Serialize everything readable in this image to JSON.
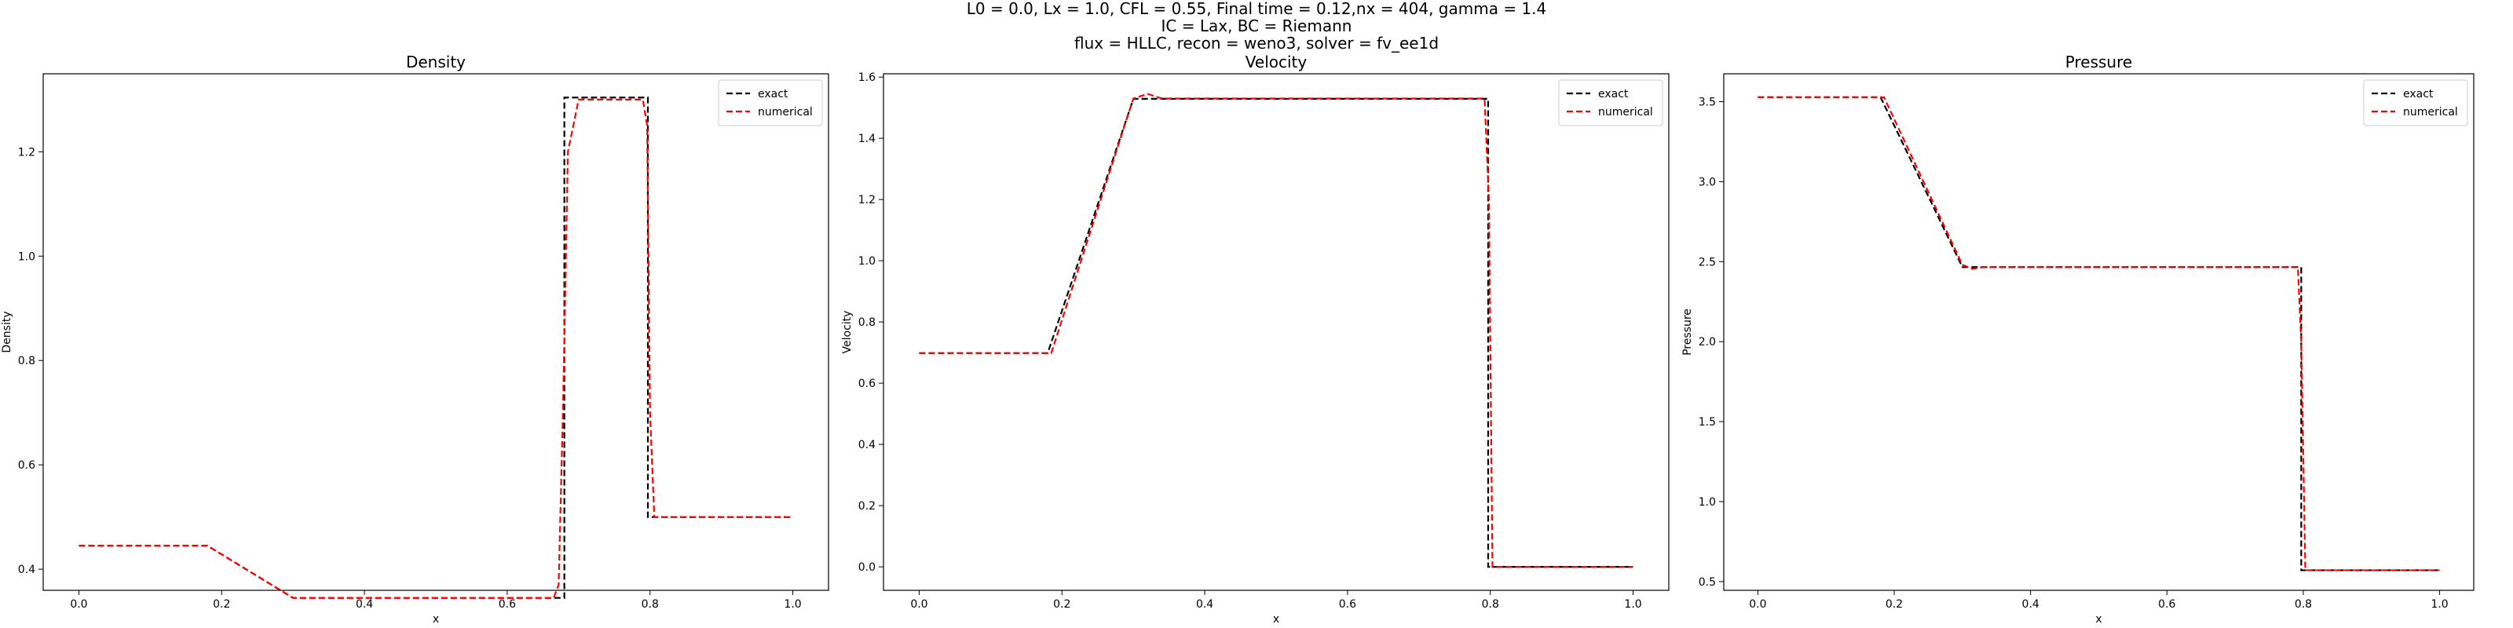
{
  "figure": {
    "suptitle_lines": [
      "L0 = 0.0, Lx = 1.0, CFL = 0.55, Final time = 0.12,nx = 404, gamma = 1.4",
      "IC = Lax, BC = Riemann",
      "flux = HLLC, recon = weno3, solver = fv_ee1d"
    ]
  },
  "colors": {
    "exact": "#000000",
    "numerical": "#ff0000",
    "axes": "#000000",
    "legend_border": "#cccccc"
  },
  "chart_data": [
    {
      "type": "line",
      "title": "Density",
      "xlabel": "x",
      "ylabel": "Density",
      "xlim": [
        -0.05,
        1.05
      ],
      "ylim": [
        0.3595,
        1.3495
      ],
      "xticks": [
        0.0,
        0.2,
        0.4,
        0.6,
        0.8,
        1.0
      ],
      "xtick_labels": [
        "0.0",
        "0.2",
        "0.4",
        "0.6",
        "0.8",
        "1.0"
      ],
      "yticks": [
        0.4,
        0.6,
        0.8,
        1.0,
        1.2
      ],
      "ytick_labels": [
        "0.4",
        "0.6",
        "0.8",
        "1.0",
        "1.2"
      ],
      "grid": false,
      "legend": "top-right",
      "series": [
        {
          "name": "exact",
          "style": "dashed",
          "color": "#000000",
          "x": [
            0.0,
            0.18,
            0.3,
            0.68,
            0.68,
            0.797,
            0.797,
            1.0
          ],
          "y": [
            0.445,
            0.445,
            0.345,
            0.345,
            1.304,
            1.304,
            0.5,
            0.5
          ]
        },
        {
          "name": "numerical",
          "style": "dashed",
          "color": "#ff0000",
          "x": [
            0.0,
            0.18,
            0.3,
            0.665,
            0.672,
            0.678,
            0.685,
            0.7,
            0.79,
            0.796,
            0.8,
            0.806,
            1.0
          ],
          "y": [
            0.445,
            0.445,
            0.345,
            0.345,
            0.37,
            0.7,
            1.2,
            1.3,
            1.3,
            1.25,
            0.7,
            0.5,
            0.5
          ]
        }
      ]
    },
    {
      "type": "line",
      "title": "Velocity",
      "xlabel": "x",
      "ylabel": "Velocity",
      "xlim": [
        -0.05,
        1.05
      ],
      "ylim": [
        -0.0767,
        1.6107
      ],
      "xticks": [
        0.0,
        0.2,
        0.4,
        0.6,
        0.8,
        1.0
      ],
      "xtick_labels": [
        "0.0",
        "0.2",
        "0.4",
        "0.6",
        "0.8",
        "1.0"
      ],
      "yticks": [
        0.0,
        0.2,
        0.4,
        0.6,
        0.8,
        1.0,
        1.2,
        1.4,
        1.6
      ],
      "ytick_labels": [
        "0.0",
        "0.2",
        "0.4",
        "0.6",
        "0.8",
        "1.0",
        "1.2",
        "1.4",
        "1.6"
      ],
      "grid": false,
      "legend": "top-right",
      "series": [
        {
          "name": "exact",
          "style": "dashed",
          "color": "#000000",
          "x": [
            0.0,
            0.18,
            0.3,
            0.797,
            0.797,
            1.0
          ],
          "y": [
            0.698,
            0.698,
            1.529,
            1.529,
            0.0,
            0.0
          ]
        },
        {
          "name": "numerical",
          "style": "dashed",
          "color": "#ff0000",
          "x": [
            0.0,
            0.185,
            0.3,
            0.32,
            0.34,
            0.792,
            0.798,
            0.803,
            1.0
          ],
          "y": [
            0.698,
            0.698,
            1.53,
            1.545,
            1.53,
            1.53,
            1.2,
            0.0,
            0.0
          ]
        }
      ]
    },
    {
      "type": "line",
      "title": "Pressure",
      "xlabel": "x",
      "ylabel": "Pressure",
      "xlim": [
        -0.05,
        1.05
      ],
      "ylim": [
        0.4455,
        3.6745
      ],
      "xticks": [
        0.0,
        0.2,
        0.4,
        0.6,
        0.8,
        1.0
      ],
      "xtick_labels": [
        "0.0",
        "0.2",
        "0.4",
        "0.6",
        "0.8",
        "1.0"
      ],
      "yticks": [
        0.5,
        1.0,
        1.5,
        2.0,
        2.5,
        3.0,
        3.5
      ],
      "ytick_labels": [
        "0.5",
        "1.0",
        "1.5",
        "2.0",
        "2.5",
        "3.0",
        "3.5"
      ],
      "grid": false,
      "legend": "top-right",
      "series": [
        {
          "name": "exact",
          "style": "dashed",
          "color": "#000000",
          "x": [
            0.0,
            0.18,
            0.3,
            0.797,
            0.797,
            1.0
          ],
          "y": [
            3.528,
            3.528,
            2.466,
            2.466,
            0.571,
            0.571
          ]
        },
        {
          "name": "numerical",
          "style": "dashed",
          "color": "#ff0000",
          "x": [
            0.0,
            0.185,
            0.3,
            0.315,
            0.33,
            0.792,
            0.797,
            0.803,
            1.0
          ],
          "y": [
            3.528,
            3.528,
            2.48,
            2.455,
            2.466,
            2.466,
            2.0,
            0.571,
            0.571
          ]
        }
      ]
    }
  ]
}
